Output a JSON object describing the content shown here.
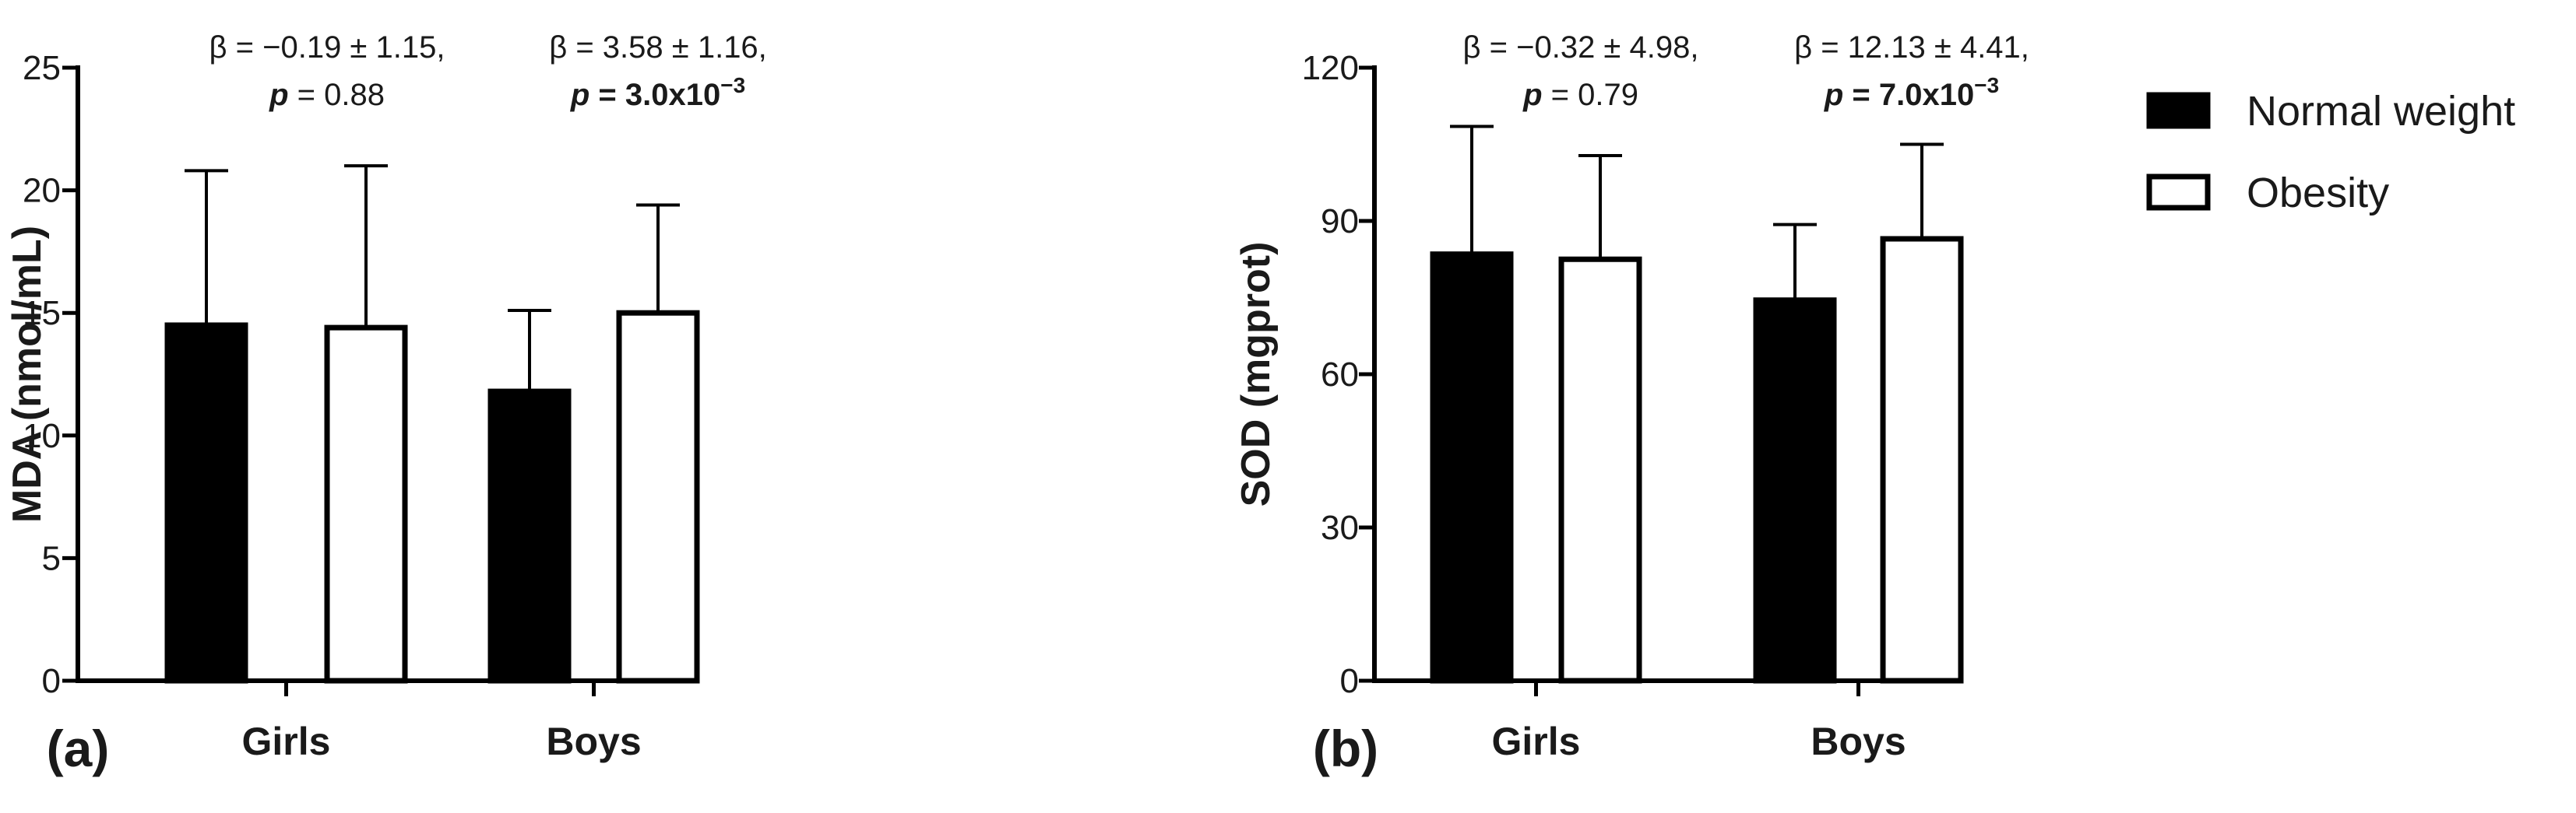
{
  "chart_data": [
    {
      "panel": "(a)",
      "type": "bar",
      "ylabel": "MDA (nmol/mL)",
      "xlabel": "",
      "ylim": [
        0,
        25
      ],
      "yticks": [
        0,
        5,
        10,
        15,
        20,
        25
      ],
      "categories": [
        "Girls",
        "Boys"
      ],
      "series": [
        {
          "name": "Normal weight",
          "values": [
            14.5,
            11.8
          ],
          "errors": [
            6.3,
            3.3
          ]
        },
        {
          "name": "Obesity",
          "values": [
            14.4,
            15.0
          ],
          "errors": [
            6.6,
            4.4
          ]
        }
      ],
      "annotations": [
        {
          "line1": "β = −0.19 ± 1.15,",
          "p_label": "p",
          "p_value": " = 0.88",
          "p_exp": "",
          "bold_p": false
        },
        {
          "line1": "β = 3.58 ± 1.16,",
          "p_label": "p",
          "p_value": " = 3.0x10",
          "p_exp": "−3",
          "bold_p": true
        }
      ]
    },
    {
      "panel": "(b)",
      "type": "bar",
      "ylabel": "SOD (mgprot)",
      "xlabel": "",
      "ylim": [
        0,
        120
      ],
      "yticks": [
        0,
        30,
        60,
        90,
        120
      ],
      "categories": [
        "Girls",
        "Boys"
      ],
      "series": [
        {
          "name": "Normal weight",
          "values": [
            83.5,
            74.5
          ],
          "errors": [
            25.0,
            14.8
          ]
        },
        {
          "name": "Obesity",
          "values": [
            82.5,
            86.5
          ],
          "errors": [
            20.3,
            18.5
          ]
        }
      ],
      "annotations": [
        {
          "line1": "β = −0.32 ± 4.98,",
          "p_label": "p",
          "p_value": " = 0.79",
          "p_exp": "",
          "bold_p": false
        },
        {
          "line1": "β = 12.13 ± 4.41,",
          "p_label": "p",
          "p_value": " = 7.0x10",
          "p_exp": "−3",
          "bold_p": true
        }
      ]
    }
  ],
  "legend": {
    "position": "top-right",
    "items": [
      {
        "label": "Normal weight",
        "fill": "#000000"
      },
      {
        "label": "Obesity",
        "fill": "#ffffff"
      }
    ]
  },
  "colors": {
    "ink": "#000000",
    "text": "#1a1a1a",
    "background": "#ffffff"
  }
}
